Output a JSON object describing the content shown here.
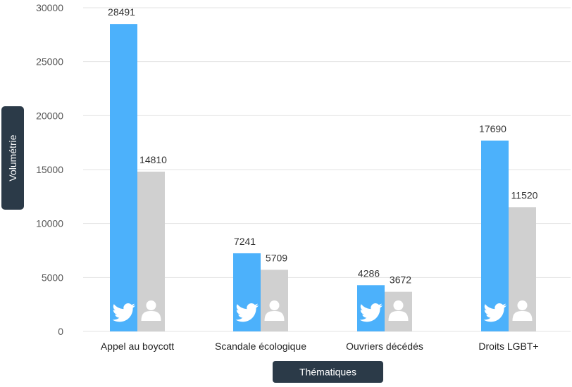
{
  "chart_data": {
    "type": "bar",
    "categories": [
      "Appel au boycott",
      "Scandale écologique",
      "Ouvriers décédés",
      "Droits LGBT+"
    ],
    "series": [
      {
        "icon": "twitter-bird-icon",
        "color": "#4cb1fb",
        "values": [
          28491,
          7241,
          4286,
          17690
        ]
      },
      {
        "icon": "user-icon",
        "color": "#d0d0d0",
        "values": [
          14810,
          5709,
          3672,
          11520
        ]
      }
    ],
    "xlabel": "Thématiques",
    "ylabel": "Volumétrie",
    "ylim": [
      0,
      30000
    ],
    "yticks": [
      "0",
      "5000",
      "10000",
      "15000",
      "20000",
      "25000",
      "30000"
    ],
    "grid": true,
    "legend": "none",
    "axis_label_color": "#2b3a48"
  }
}
